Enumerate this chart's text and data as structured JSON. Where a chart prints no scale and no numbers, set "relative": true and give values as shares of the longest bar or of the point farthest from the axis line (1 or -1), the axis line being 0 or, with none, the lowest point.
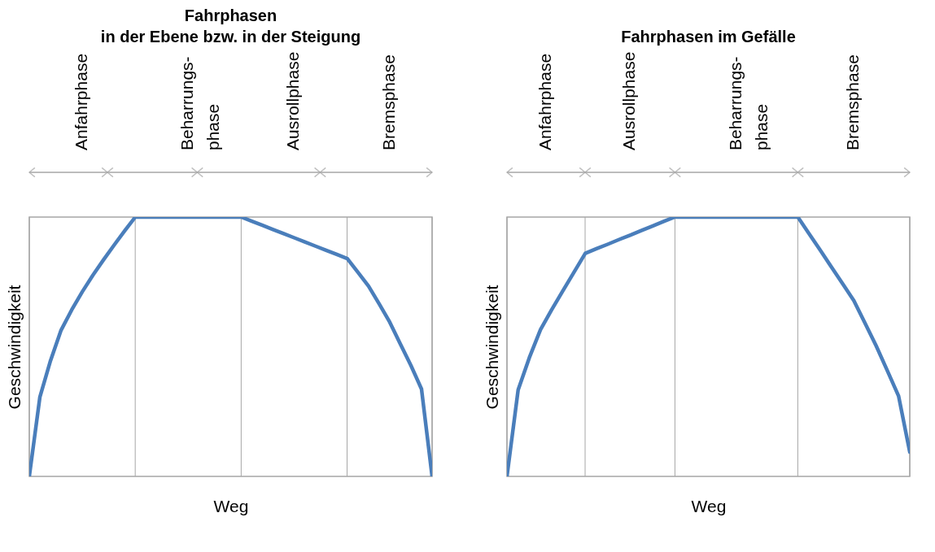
{
  "chart_data": [
    {
      "type": "line",
      "title": "Fahrphasen\nin der Ebene bzw. in der Steigung",
      "xlabel": "Weg",
      "ylabel": "Geschwindigkeit",
      "relative": true,
      "categories": [
        null,
        null,
        null,
        null,
        null,
        null,
        null,
        null,
        null,
        null,
        null,
        null,
        null,
        null,
        null,
        null,
        null,
        null,
        null,
        null,
        null,
        null,
        null,
        null,
        null,
        null,
        null,
        null,
        null,
        null,
        null,
        null,
        null,
        null,
        null,
        null,
        null,
        null,
        null
      ],
      "series": [
        {
          "color": "#4a7ebb",
          "values": [
            0,
            0.306,
            0.446,
            0.564,
            0.642,
            0.712,
            0.776,
            0.835,
            0.892,
            0.947,
            1,
            1,
            1,
            1,
            1,
            1,
            1,
            1,
            1,
            1,
            1,
            0.984,
            0.968,
            0.952,
            0.936,
            0.92,
            0.904,
            0.888,
            0.872,
            0.856,
            0.84,
            0.787,
            0.734,
            0.666,
            0.595,
            0.511,
            0.428,
            0.337,
            0
          ]
        }
      ],
      "grid": "x",
      "annotations": [
        "Anfahrphase",
        "Beharrungs-\nphase",
        "Ausrollphase",
        "Bremsphase"
      ]
    },
    {
      "type": "line",
      "title": "Fahrphasen im Gefälle",
      "xlabel": "Weg",
      "ylabel": "Geschwindigkeit",
      "relative": true,
      "categories": [
        null,
        null,
        null,
        null,
        null,
        null,
        null,
        null,
        null,
        null,
        null,
        null,
        null,
        null,
        null,
        null,
        null,
        null,
        null,
        null,
        null,
        null,
        null,
        null,
        null,
        null,
        null,
        null,
        null,
        null,
        null,
        null,
        null,
        null,
        null,
        null,
        null
      ],
      "series": [
        {
          "color": "#4a7ebb",
          "values": [
            0,
            0.334,
            0.458,
            0.566,
            0.643,
            0.716,
            0.788,
            0.86,
            0.878,
            0.895,
            0.913,
            0.93,
            0.948,
            0.965,
            0.983,
            1,
            1,
            1,
            1,
            1,
            1,
            1,
            1,
            1,
            1,
            1,
            1,
            0.936,
            0.872,
            0.807,
            0.743,
            0.678,
            0.591,
            0.503,
            0.407,
            0.31,
            0.094
          ]
        }
      ],
      "grid": "x",
      "annotations": [
        "Anfahrphase",
        "Ausrollphase",
        "Beharrungs-\nphase",
        "Bremsphase"
      ]
    }
  ]
}
